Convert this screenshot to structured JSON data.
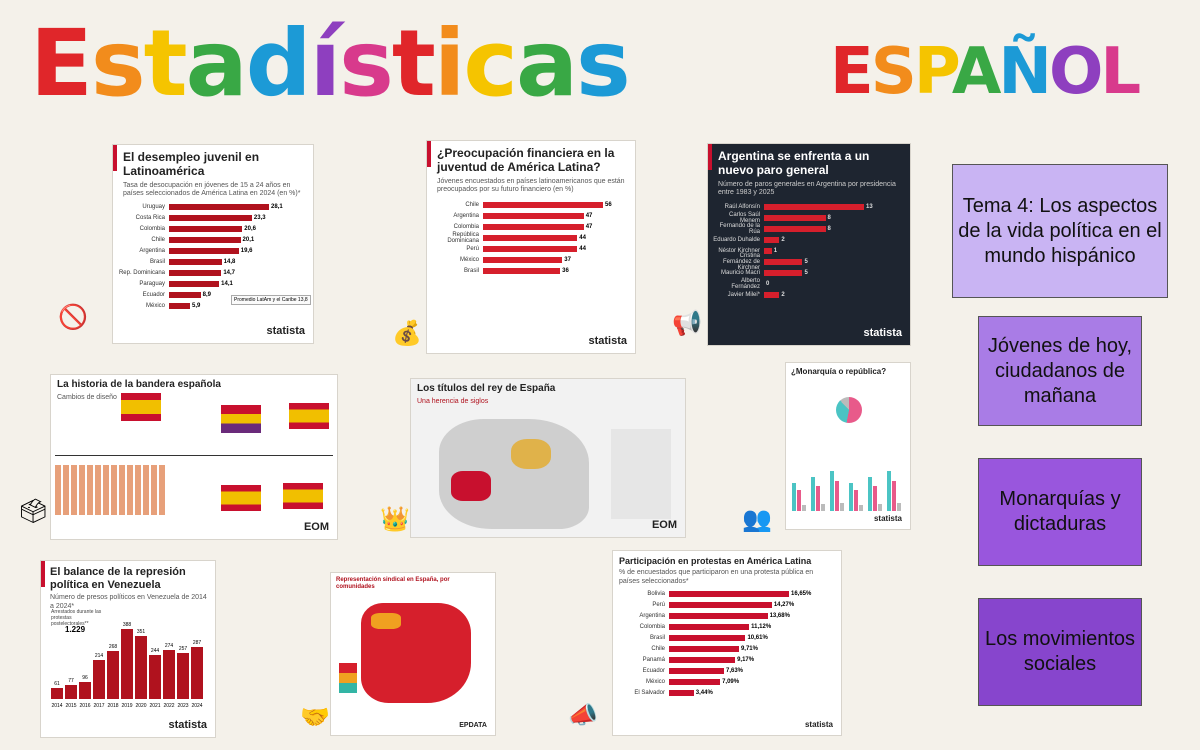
{
  "header": {
    "title": "Estadísticas",
    "subtitle": "ESPAÑOL"
  },
  "colors": {
    "title_gradient": [
      "#e0262a",
      "#f28c1c",
      "#f5c400",
      "#39a845",
      "#1c9ad6",
      "#8e3fbf",
      "#d83a8c"
    ]
  },
  "topics": [
    {
      "label": "Tema 4: Los aspectos de la vida política en el mundo hispánico"
    },
    {
      "label": "Jóvenes de hoy, ciudadanos de mañana"
    },
    {
      "label": "Monarquías y dictaduras"
    },
    {
      "label": "Los movimientos sociales"
    }
  ],
  "charts": {
    "desempleo": {
      "title": "El desempleo juvenil en Latinoamérica",
      "subtitle": "Tasa de desocupación en jóvenes de 15 a 24 años en países seleccionados de América Latina en 2024 (en %)*",
      "note": "Promedio LatAm y el Caribe 13,8",
      "brand": "statista"
    },
    "preocupacion": {
      "title": "¿Preocupación financiera en la juventud de América Latina?",
      "subtitle": "Jóvenes encuestados en países latinoamericanos que están preocupados por su futuro financiero (en %)",
      "brand": "statista"
    },
    "paro": {
      "title": "Argentina se enfrenta a un nuevo paro general",
      "subtitle": "Número de paros generales en Argentina por presidencia entre 1983 y 2025",
      "brand": "statista"
    },
    "bandera": {
      "title": "La historia de la bandera española",
      "subtitle": "Cambios de diseño",
      "brand": "EOM"
    },
    "rey": {
      "title": "Los títulos del rey de España",
      "subtitle": "Una herencia de siglos",
      "brand": "EOM"
    },
    "monarquia": {
      "title": "¿Monarquía o república?",
      "brand": "statista"
    },
    "venezuela": {
      "title": "El balance de la represión política en Venezuela",
      "subtitle": "Número de presos políticos en Venezuela de 2014 a 2024*",
      "callout_label": "Arrestados durante las protestas postelectorales**",
      "callout_value": "1.229",
      "brand": "statista"
    },
    "sindical": {
      "title": "Representación sindical en España, por comunidades",
      "brand": "EPDATA"
    },
    "protestas": {
      "title": "Participación en protestas en América Latina",
      "subtitle": "% de encuestados que participaron en una protesta pública en países seleccionados*",
      "brand": "statista"
    }
  },
  "chart_data": [
    {
      "type": "bar",
      "title": "El desempleo juvenil en Latinoamérica",
      "categories": [
        "Uruguay",
        "Costa Rica",
        "Colombia",
        "Chile",
        "Argentina",
        "Brasil",
        "Rep. Dominicana",
        "Paraguay",
        "Ecuador",
        "México"
      ],
      "values": [
        28.1,
        23.3,
        20.6,
        20.1,
        19.6,
        14.8,
        14.7,
        14.1,
        8.9,
        5.9
      ],
      "labels": [
        "28,1",
        "23,3",
        "20,6",
        "20,1",
        "19,6",
        "14,8",
        "14,7",
        "14,1",
        "8,9",
        "5,9"
      ]
    },
    {
      "type": "bar",
      "title": "¿Preocupación financiera en la juventud de América Latina?",
      "categories": [
        "Chile",
        "Argentina",
        "Colombia",
        "República Dominicana",
        "Perú",
        "México",
        "Brasil"
      ],
      "values": [
        56,
        47,
        47,
        44,
        44,
        37,
        36
      ]
    },
    {
      "type": "bar",
      "title": "Argentina se enfrenta a un nuevo paro general",
      "categories": [
        "Raúl Alfonsín",
        "Carlos Saúl Menem",
        "Fernando de la Rúa",
        "Eduardo Duhalde",
        "Néstor Kirchner",
        "Cristina Fernández de Kirchner",
        "Mauricio Macri",
        "Alberto Fernández",
        "Javier Milei*"
      ],
      "values": [
        13,
        8,
        8,
        2,
        1,
        5,
        5,
        0,
        2
      ]
    },
    {
      "type": "bar",
      "title": "El balance de la represión política en Venezuela",
      "categories": [
        "2014",
        "2015",
        "2016",
        "2017",
        "2018",
        "2019",
        "2020",
        "2021",
        "2022",
        "2023",
        "2024"
      ],
      "values": [
        61,
        77,
        96,
        214,
        268,
        388,
        351,
        244,
        274,
        257,
        287
      ]
    },
    {
      "type": "bar",
      "title": "Participación en protestas en América Latina",
      "categories": [
        "Bolivia",
        "Perú",
        "Argentina",
        "Colombia",
        "Brasil",
        "Chile",
        "Panamá",
        "Ecuador",
        "México",
        "El Salvador"
      ],
      "values": [
        16.65,
        14.27,
        13.68,
        11.12,
        10.61,
        9.71,
        9.17,
        7.63,
        7.09,
        3.44
      ],
      "labels": [
        "16,65%",
        "14,27%",
        "13,68%",
        "11,12%",
        "10,61%",
        "9,71%",
        "9,17%",
        "7,63%",
        "7,09%",
        "3,44%"
      ]
    }
  ]
}
